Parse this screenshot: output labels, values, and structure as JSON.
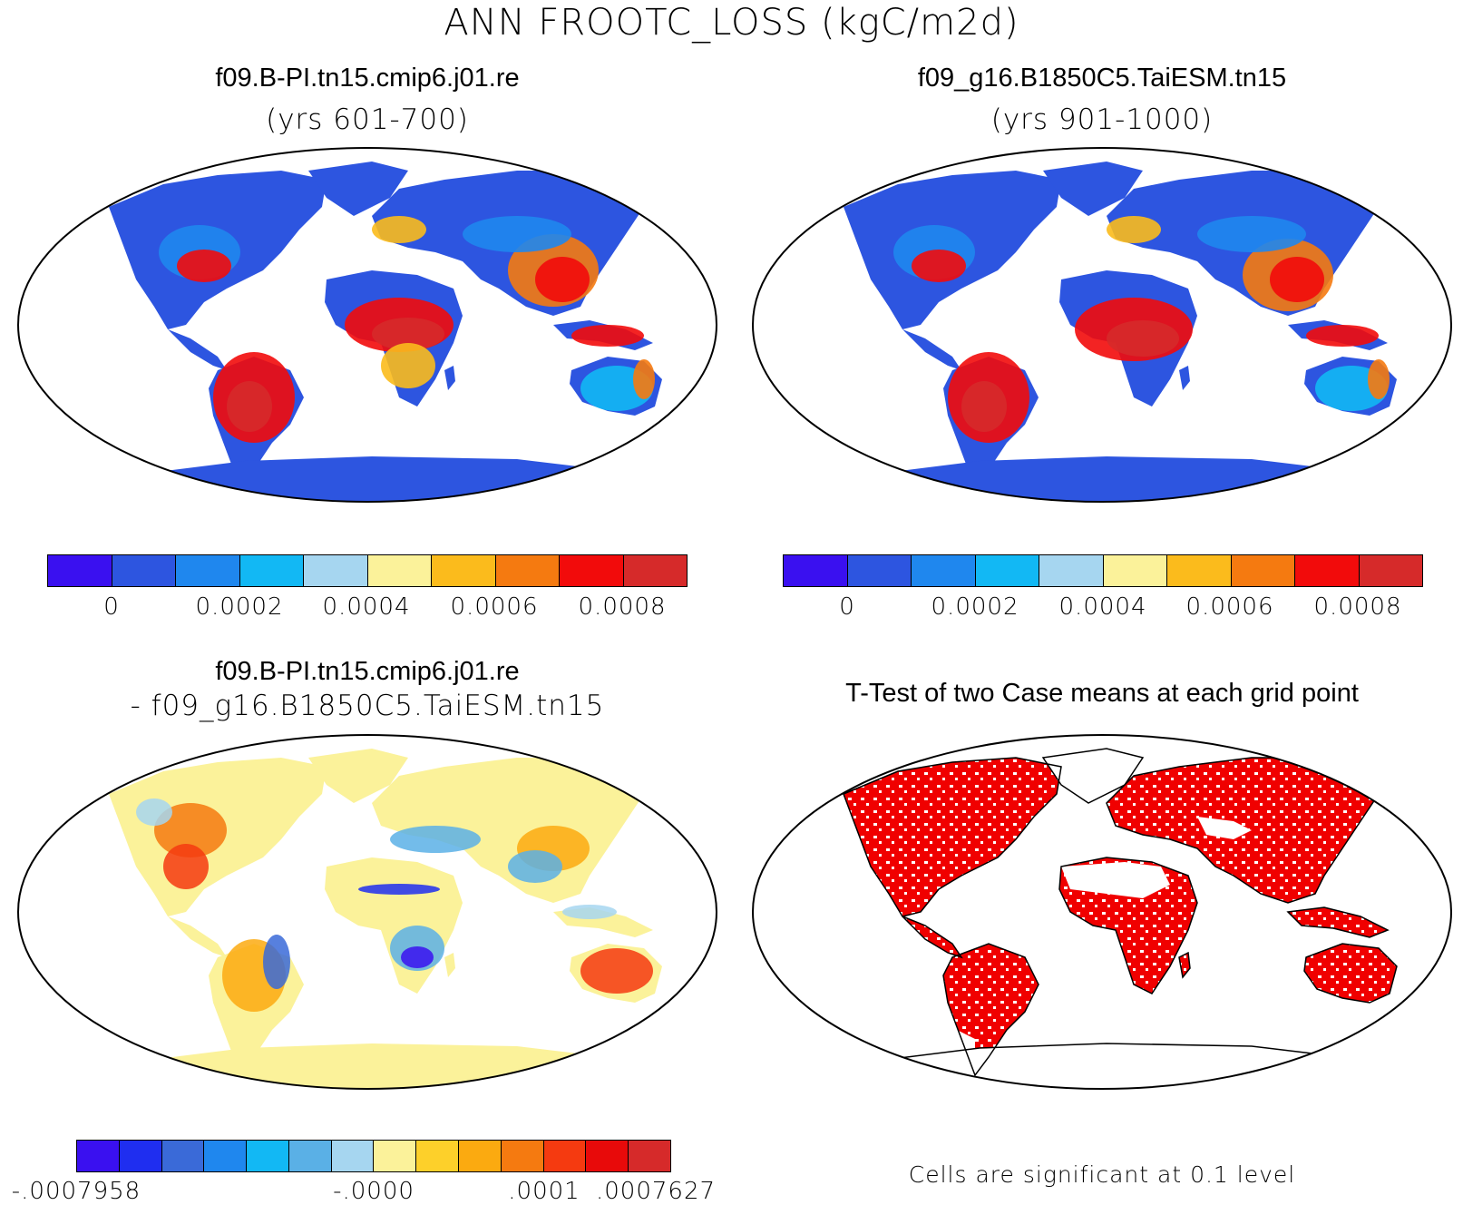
{
  "figure": {
    "title": "ANN FROOTC_LOSS (kgC/m2d)"
  },
  "panels": {
    "top_left": {
      "title": "f09.B-PI.tn15.cmip6.j01.re",
      "subtitle": "(yrs 601-700)",
      "colorbar": {
        "colors": [
          "#3a10f0",
          "#2d55e0",
          "#1f87ee",
          "#12b8f4",
          "#a6d6f0",
          "#fbf29a",
          "#fbbb1c",
          "#f57a10",
          "#f20b0b",
          "#d62a2a"
        ],
        "tick_labels": [
          "0",
          "0.0002",
          "0.0004",
          "0.0006",
          "0.0008"
        ]
      }
    },
    "top_right": {
      "title": "f09_g16.B1850C5.TaiESM.tn15",
      "subtitle": "(yrs 901-1000)",
      "colorbar": {
        "colors": [
          "#3a10f0",
          "#2d55e0",
          "#1f87ee",
          "#12b8f4",
          "#a6d6f0",
          "#fbf29a",
          "#fbbb1c",
          "#f57a10",
          "#f20b0b",
          "#d62a2a"
        ],
        "tick_labels": [
          "0",
          "0.0002",
          "0.0004",
          "0.0006",
          "0.0008"
        ]
      }
    },
    "bottom_left": {
      "title": "f09.B-PI.tn15.cmip6.j01.re",
      "subtitle": "- f09_g16.B1850C5.TaiESM.tn15",
      "colorbar": {
        "colors": [
          "#3a10f0",
          "#1f2ef0",
          "#3a6ad8",
          "#1f87ee",
          "#12b8f4",
          "#5ab0e6",
          "#a6d6f0",
          "#fbf29a",
          "#fdd02a",
          "#fbaa10",
          "#f57a10",
          "#f53a10",
          "#e80a0a",
          "#d62a2a"
        ],
        "tick_labels": [
          "-.0007958",
          "-.0000",
          ".0001",
          ".0007627"
        ]
      }
    },
    "bottom_right": {
      "title": "T-Test of two Case means at each grid point",
      "note": "Cells are significant at 0.1 level",
      "significant_color": "#f00000"
    }
  }
}
